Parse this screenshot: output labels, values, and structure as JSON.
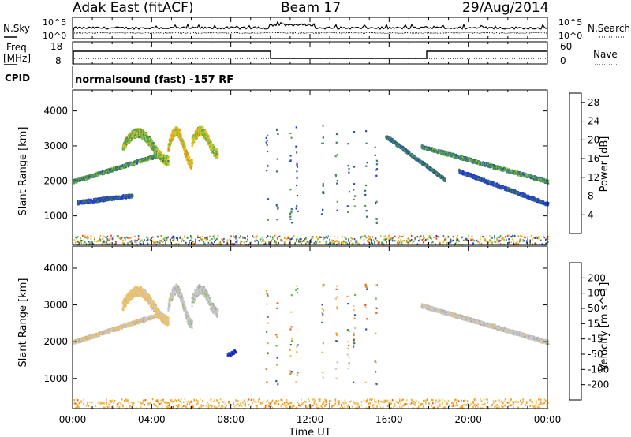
{
  "header": {
    "radar": "Adak East (fitACF)",
    "beam": "Beam 17",
    "date": "29/Aug/2014"
  },
  "panels": {
    "nsky_label": "N.Sky",
    "nsearch_label": "N.Search",
    "freq_label_1": "Freq.",
    "freq_label_2": "[MHz]",
    "nave_label": "Nave",
    "cpid_label": "CPID",
    "cpid_text": "normalsound (fast) -157 RF",
    "noise_ticks_left": [
      "10^5",
      "10^0"
    ],
    "noise_ticks_right": [
      "10^5",
      "10^0"
    ],
    "freq_ticks": [
      "18",
      "8"
    ],
    "nave_ticks": [
      "60",
      "0"
    ]
  },
  "colors": {
    "power_scale": [
      "#1f2ef0",
      "#2a4fa8",
      "#3f7a66",
      "#4fa34b",
      "#98cc3c",
      "#f0c020",
      "#f08a10",
      "#e84010",
      "#dd0000"
    ],
    "velocity_scale": [
      "#1020c0",
      "#2f4fb0",
      "#3c7a4c",
      "#5fbf3f",
      "#c8c8c8",
      "#f0c060",
      "#f0a020",
      "#f06010",
      "#e00000"
    ],
    "ground_scatter": "#a8a8a8"
  },
  "chart_data": [
    {
      "type": "heatmap",
      "title": "",
      "xlabel": "Time UT",
      "ylabel": "Slant Range [km]",
      "x_tick_labels": [
        "00:00",
        "04:00",
        "08:00",
        "12:00",
        "16:00",
        "20:00",
        "00:00"
      ],
      "x_range_hours": [
        0,
        24
      ],
      "ylim": [
        180,
        4600
      ],
      "y_ticks": [
        1000,
        2000,
        3000,
        4000
      ],
      "colorbar_label": "Power [dB]",
      "colorbar_ticks": [
        "4",
        "8",
        "12",
        "16",
        "20",
        "24",
        "28"
      ],
      "colorbar_range": [
        0,
        30
      ],
      "features": [
        {
          "name": "arc-1",
          "t_start": 0.0,
          "t_end": 4.3,
          "r_start": 2000,
          "r_end": 2750,
          "value": 10
        },
        {
          "name": "arc-2",
          "t_start": 0.2,
          "t_end": 3.0,
          "r_start": 1400,
          "r_end": 1600,
          "value": 5
        },
        {
          "name": "patch-a",
          "t_start": 2.5,
          "t_end": 4.8,
          "r_start": 2600,
          "r_end": 3400,
          "value": 14
        },
        {
          "name": "patch-b",
          "t_start": 4.8,
          "t_end": 6.0,
          "r_start": 2500,
          "r_end": 3450,
          "value": 18
        },
        {
          "name": "patch-c",
          "t_start": 6.0,
          "t_end": 7.3,
          "r_start": 2800,
          "r_end": 3450,
          "value": 16
        },
        {
          "name": "arc-3",
          "t_start": 15.8,
          "t_end": 18.8,
          "r_start": 3300,
          "r_end": 2050,
          "value": 8
        },
        {
          "name": "arc-4",
          "t_start": 17.6,
          "t_end": 24.0,
          "r_start": 3000,
          "r_end": 2000,
          "value": 10
        },
        {
          "name": "arc-5",
          "t_start": 19.5,
          "t_end": 24.0,
          "r_start": 2300,
          "r_end": 1350,
          "value": 5
        }
      ]
    },
    {
      "type": "heatmap",
      "title": "",
      "xlabel": "Time UT",
      "ylabel": "Slant Range [km]",
      "x_tick_labels": [
        "00:00",
        "04:00",
        "08:00",
        "12:00",
        "16:00",
        "20:00",
        "00:00"
      ],
      "x_range_hours": [
        0,
        24
      ],
      "ylim": [
        180,
        4600
      ],
      "y_ticks": [
        1000,
        2000,
        3000,
        4000
      ],
      "colorbar_label": "Velocity [m s^-1]",
      "colorbar_ticks": [
        "200",
        "100",
        "50",
        "15",
        "-15",
        "-50",
        "-100",
        "-200"
      ],
      "colorbar_range": [
        -250,
        250
      ],
      "features": [
        {
          "name": "arc-1",
          "t_start": 0.0,
          "t_end": 4.3,
          "r_start": 2000,
          "r_end": 2750,
          "value": -20
        },
        {
          "name": "patch-a",
          "t_start": 2.5,
          "t_end": 4.8,
          "r_start": 2600,
          "r_end": 3400,
          "value": -40
        },
        {
          "name": "patch-b",
          "t_start": 4.8,
          "t_end": 6.0,
          "r_start": 2500,
          "r_end": 3450,
          "value": 0
        },
        {
          "name": "patch-c",
          "t_start": 6.0,
          "t_end": 7.3,
          "r_start": 2800,
          "r_end": 3450,
          "value": 0
        },
        {
          "name": "blob-08",
          "t_start": 7.8,
          "t_end": 8.2,
          "r_start": 1650,
          "r_end": 1750,
          "value": 200
        },
        {
          "name": "arc-4",
          "t_start": 17.6,
          "t_end": 24.0,
          "r_start": 3000,
          "r_end": 2000,
          "value": -5
        }
      ]
    }
  ]
}
